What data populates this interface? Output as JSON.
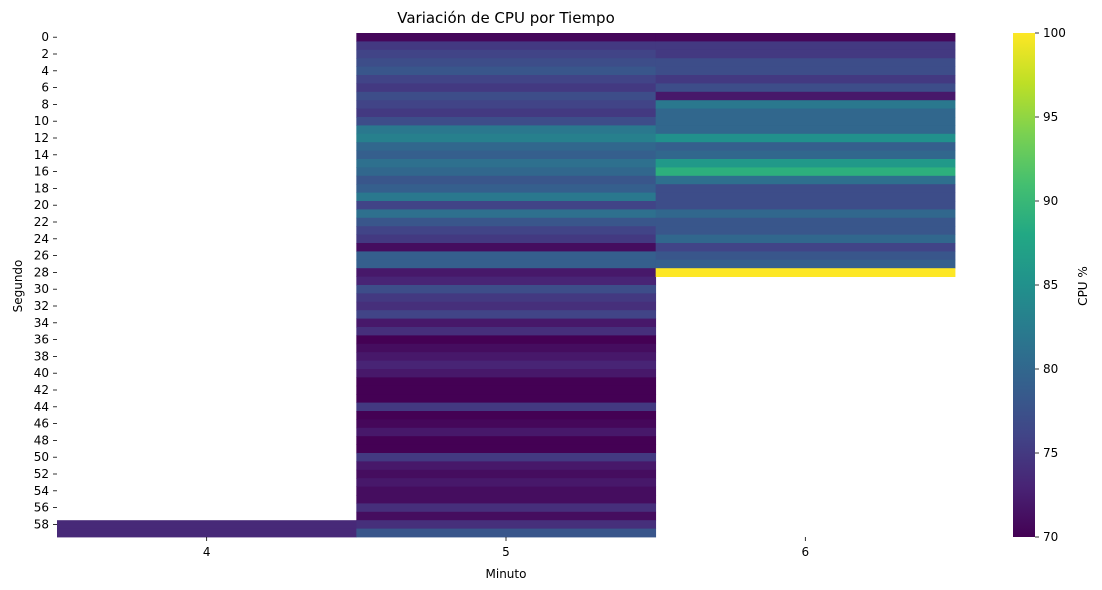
{
  "chart_data": {
    "type": "heatmap",
    "title": "Variación de CPU por Tiempo",
    "xlabel": "Minuto",
    "ylabel": "Segundo",
    "colorbar_label": "CPU %",
    "colormap": "viridis",
    "vmin": 70,
    "vmax": 100,
    "colorbar_ticks": [
      70,
      75,
      80,
      85,
      90,
      95,
      100
    ],
    "x_categories": [
      4,
      5,
      6
    ],
    "y_categories": [
      0,
      1,
      2,
      3,
      4,
      5,
      6,
      7,
      8,
      9,
      10,
      11,
      12,
      13,
      14,
      15,
      16,
      17,
      18,
      19,
      20,
      21,
      22,
      23,
      24,
      25,
      26,
      27,
      28,
      29,
      30,
      31,
      32,
      33,
      34,
      35,
      36,
      37,
      38,
      39,
      40,
      41,
      42,
      43,
      44,
      45,
      46,
      47,
      48,
      49,
      50,
      51,
      52,
      53,
      54,
      55,
      56,
      57,
      58,
      59
    ],
    "y_tick_labels": [
      0,
      2,
      4,
      6,
      8,
      10,
      12,
      14,
      16,
      18,
      20,
      22,
      24,
      26,
      28,
      30,
      32,
      34,
      36,
      38,
      40,
      42,
      44,
      46,
      48,
      50,
      52,
      54,
      56,
      58
    ],
    "missing_color": "#ffffff",
    "series": [
      {
        "name": "4",
        "values": [
          null,
          null,
          null,
          null,
          null,
          null,
          null,
          null,
          null,
          null,
          null,
          null,
          null,
          null,
          null,
          null,
          null,
          null,
          null,
          null,
          null,
          null,
          null,
          null,
          null,
          null,
          null,
          null,
          null,
          null,
          null,
          null,
          null,
          null,
          null,
          null,
          null,
          null,
          null,
          null,
          null,
          null,
          null,
          null,
          null,
          null,
          null,
          null,
          null,
          null,
          null,
          null,
          null,
          null,
          null,
          null,
          null,
          null,
          73.5,
          73.5
        ]
      },
      {
        "name": "5",
        "values": [
          70.5,
          75,
          76,
          77,
          78,
          76,
          75,
          77,
          76,
          75,
          77,
          82,
          83,
          80,
          79,
          81,
          80,
          78,
          79,
          82,
          76,
          81,
          78,
          76,
          75,
          71,
          79,
          79,
          72,
          73,
          77,
          75,
          74,
          76,
          72,
          74,
          70,
          71,
          72,
          73,
          72,
          70,
          70,
          70,
          75,
          70,
          70.5,
          72,
          70,
          70,
          75,
          72,
          71,
          72,
          71,
          71,
          74,
          71,
          74,
          78
        ]
      },
      {
        "name": "6",
        "values": [
          70.5,
          75,
          75,
          77,
          77,
          75,
          77,
          72,
          82,
          80,
          80,
          80,
          85,
          79,
          80,
          86,
          89,
          81,
          77,
          77,
          77,
          80,
          78,
          78,
          80,
          76,
          78,
          79,
          100,
          null,
          null,
          null,
          null,
          null,
          null,
          null,
          null,
          null,
          null,
          null,
          null,
          null,
          null,
          null,
          null,
          null,
          null,
          null,
          null,
          null,
          null,
          null,
          null,
          null,
          null,
          null,
          null,
          null,
          null,
          null
        ]
      }
    ]
  }
}
